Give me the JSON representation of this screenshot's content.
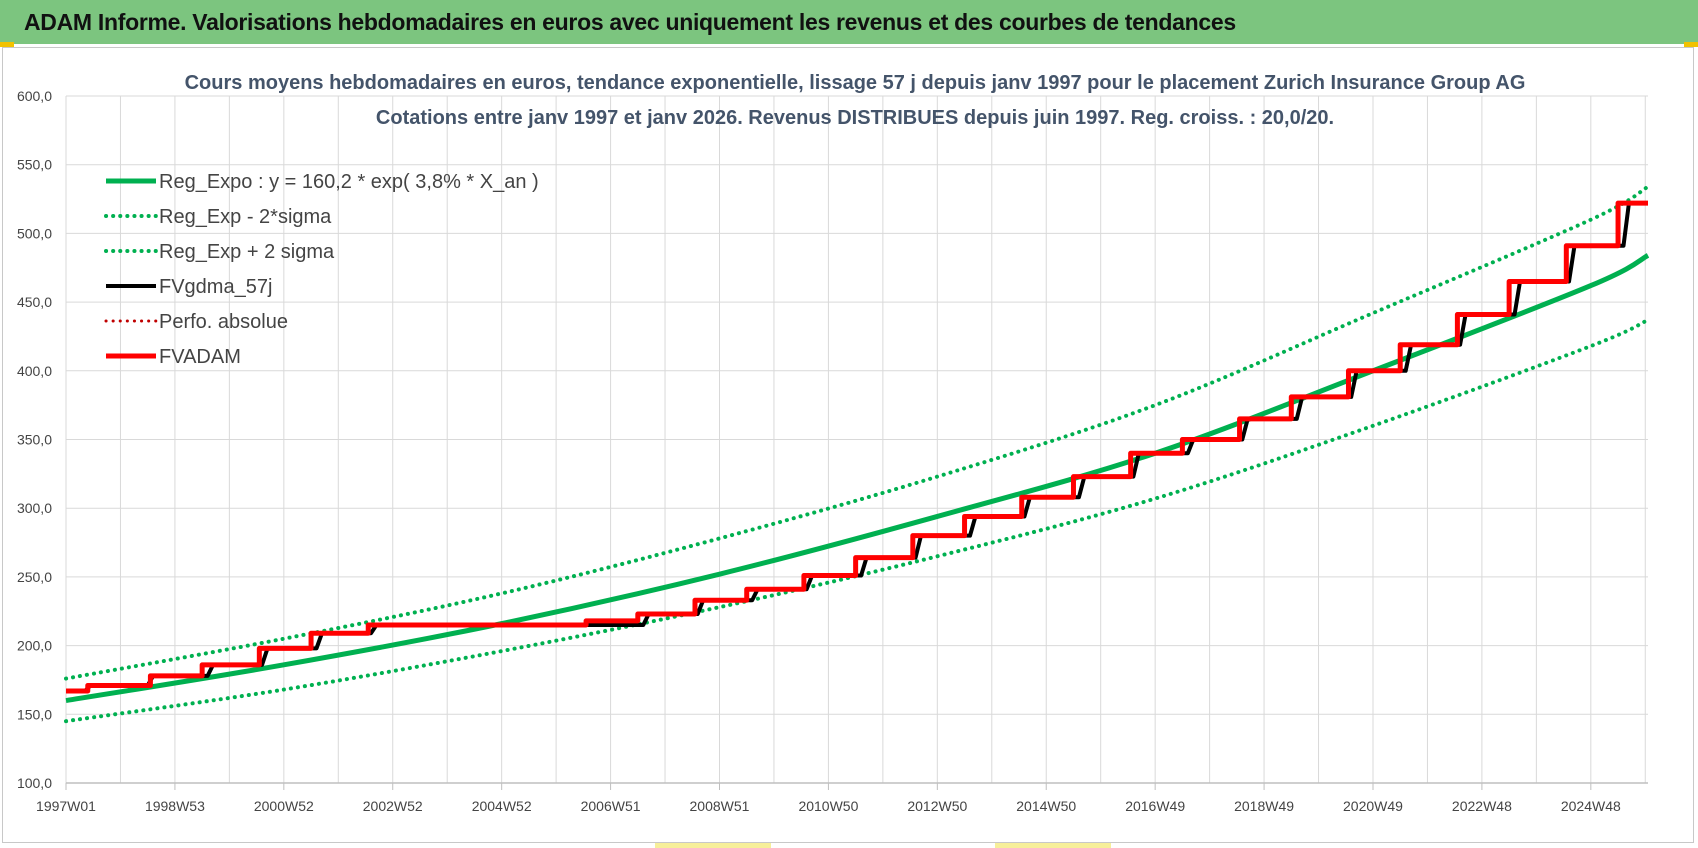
{
  "header": {
    "title": "ADAM Informe. Valorisations hebdomadaires en euros avec uniquement les revenus et des courbes de tendances"
  },
  "chart_data": {
    "type": "line",
    "title": "Cours moyens hebdomadaires en euros, tendance exponentielle, lissage 57 j depuis janv 1997  pour le placement Zurich Insurance Group AG",
    "subtitle": "Cotations entre janv 1997 et janv 2026. Revenus DISTRIBUES depuis juin 1997. Reg. croiss. : 20,0/20.",
    "xlabel": "",
    "ylabel": "",
    "ylim": [
      100,
      600
    ],
    "xlim_years": [
      1997.0,
      2026.05
    ],
    "y_ticks": [
      "100,0",
      "150,0",
      "200,0",
      "250,0",
      "300,0",
      "350,0",
      "400,0",
      "450,0",
      "500,0",
      "550,0",
      "600,0"
    ],
    "x_ticks": [
      {
        "label": "1997W01",
        "year": 1997.0
      },
      {
        "label": "1998W53",
        "year": 1999.0
      },
      {
        "label": "2000W52",
        "year": 2001.0
      },
      {
        "label": "2002W52",
        "year": 2003.0
      },
      {
        "label": "2004W52",
        "year": 2005.0
      },
      {
        "label": "2006W51",
        "year": 2007.0
      },
      {
        "label": "2008W51",
        "year": 2009.0
      },
      {
        "label": "2010W50",
        "year": 2011.0
      },
      {
        "label": "2012W50",
        "year": 2013.0
      },
      {
        "label": "2014W50",
        "year": 2015.0
      },
      {
        "label": "2016W49",
        "year": 2017.0
      },
      {
        "label": "2018W49",
        "year": 2019.0
      },
      {
        "label": "2020W49",
        "year": 2021.0
      },
      {
        "label": "2022W48",
        "year": 2023.0
      },
      {
        "label": "2024W48",
        "year": 2025.0
      }
    ],
    "grid": true,
    "legend_position": "top-left",
    "series": [
      {
        "name": "Reg_Expo : y = 160,2 * exp( 3,8% *  X_an )",
        "color": "#00b050",
        "style": "solid",
        "x": [
          1997.0,
          2001.0,
          2005.0,
          2009.0,
          2013.0,
          2017.0,
          2021.0,
          2025.0,
          2026.05
        ],
        "y": [
          160.0,
          186.0,
          216.0,
          252.0,
          294.0,
          340.0,
          400.0,
          462.0,
          484.0
        ]
      },
      {
        "name": "Reg_Exp - 2*sigma",
        "color": "#00b050",
        "style": "dotted",
        "x": [
          1997.0,
          2001.0,
          2005.0,
          2009.0,
          2013.0,
          2017.0,
          2021.0,
          2025.0,
          2026.05
        ],
        "y": [
          145.0,
          168.0,
          196.0,
          228.0,
          265.0,
          307.0,
          360.0,
          418.0,
          437.0
        ]
      },
      {
        "name": "Reg_Exp + 2 sigma",
        "color": "#00b050",
        "style": "dotted",
        "x": [
          1997.0,
          2001.0,
          2005.0,
          2009.0,
          2013.0,
          2017.0,
          2021.0,
          2025.0,
          2026.05
        ],
        "y": [
          176.0,
          205.0,
          238.0,
          278.0,
          323.0,
          375.0,
          442.0,
          510.0,
          534.0
        ]
      },
      {
        "name": "FVgdma_57j",
        "color": "#000000",
        "style": "solid",
        "x": [
          1997.0,
          1997.35,
          1997.45,
          1998.5,
          1998.6,
          1999.6,
          1999.7,
          2000.6,
          2000.7,
          2001.6,
          2001.7,
          2002.6,
          2002.7,
          2007.6,
          2007.7,
          2008.6,
          2008.7,
          2009.6,
          2009.7,
          2010.6,
          2010.7,
          2011.6,
          2011.7,
          2012.6,
          2012.7,
          2013.6,
          2013.7,
          2014.6,
          2014.7,
          2015.6,
          2015.7,
          2016.6,
          2016.7,
          2017.6,
          2017.7,
          2018.6,
          2018.7,
          2019.6,
          2019.7,
          2020.6,
          2020.7,
          2021.6,
          2021.7,
          2022.6,
          2022.7,
          2023.6,
          2023.7,
          2024.6,
          2024.7,
          2025.6,
          2025.7,
          2026.05
        ],
        "y": [
          167.0,
          167.0,
          171.0,
          171.0,
          178.0,
          178.0,
          186.0,
          186.0,
          198.0,
          198.0,
          209.0,
          209.0,
          215.0,
          215.0,
          223.0,
          223.0,
          233.0,
          233.0,
          241.0,
          241.0,
          251.0,
          251.0,
          264.0,
          264.0,
          280.0,
          280.0,
          294.0,
          294.0,
          308.0,
          308.0,
          323.0,
          323.0,
          340.0,
          340.0,
          350.0,
          350.0,
          365.0,
          365.0,
          381.0,
          381.0,
          400.0,
          400.0,
          419.0,
          419.0,
          441.0,
          441.0,
          465.0,
          465.0,
          491.0,
          491.0,
          522.0,
          522.0
        ]
      },
      {
        "name": "Perfo. absolue",
        "color": "#c00000",
        "style": "dotted",
        "x": [],
        "y": []
      },
      {
        "name": "FVADAM",
        "color": "#ff0000",
        "style": "solid",
        "x": [
          1997.0,
          1997.4,
          1997.4,
          1998.55,
          1998.55,
          1999.5,
          1999.5,
          2000.55,
          2000.55,
          2001.5,
          2001.5,
          2002.55,
          2002.55,
          2006.55,
          2006.55,
          2007.5,
          2007.5,
          2008.55,
          2008.55,
          2009.5,
          2009.5,
          2010.55,
          2010.55,
          2011.5,
          2011.5,
          2012.55,
          2012.55,
          2013.5,
          2013.5,
          2014.55,
          2014.55,
          2015.5,
          2015.5,
          2016.55,
          2016.55,
          2017.5,
          2017.5,
          2018.55,
          2018.55,
          2019.5,
          2019.5,
          2020.55,
          2020.55,
          2021.5,
          2021.5,
          2022.55,
          2022.55,
          2023.5,
          2023.5,
          2024.55,
          2024.55,
          2025.5,
          2025.5,
          2026.05
        ],
        "y": [
          167.0,
          167.0,
          171.0,
          171.0,
          178.0,
          178.0,
          186.0,
          186.0,
          198.0,
          198.0,
          209.0,
          209.0,
          215.0,
          215.0,
          218.0,
          218.0,
          223.0,
          223.0,
          233.0,
          233.0,
          241.0,
          241.0,
          251.0,
          251.0,
          264.0,
          264.0,
          280.0,
          280.0,
          294.0,
          294.0,
          308.0,
          308.0,
          323.0,
          323.0,
          340.0,
          340.0,
          350.0,
          350.0,
          365.0,
          365.0,
          381.0,
          381.0,
          400.0,
          400.0,
          419.0,
          419.0,
          441.0,
          441.0,
          465.0,
          465.0,
          491.0,
          491.0,
          522.0,
          522.0
        ]
      }
    ]
  }
}
